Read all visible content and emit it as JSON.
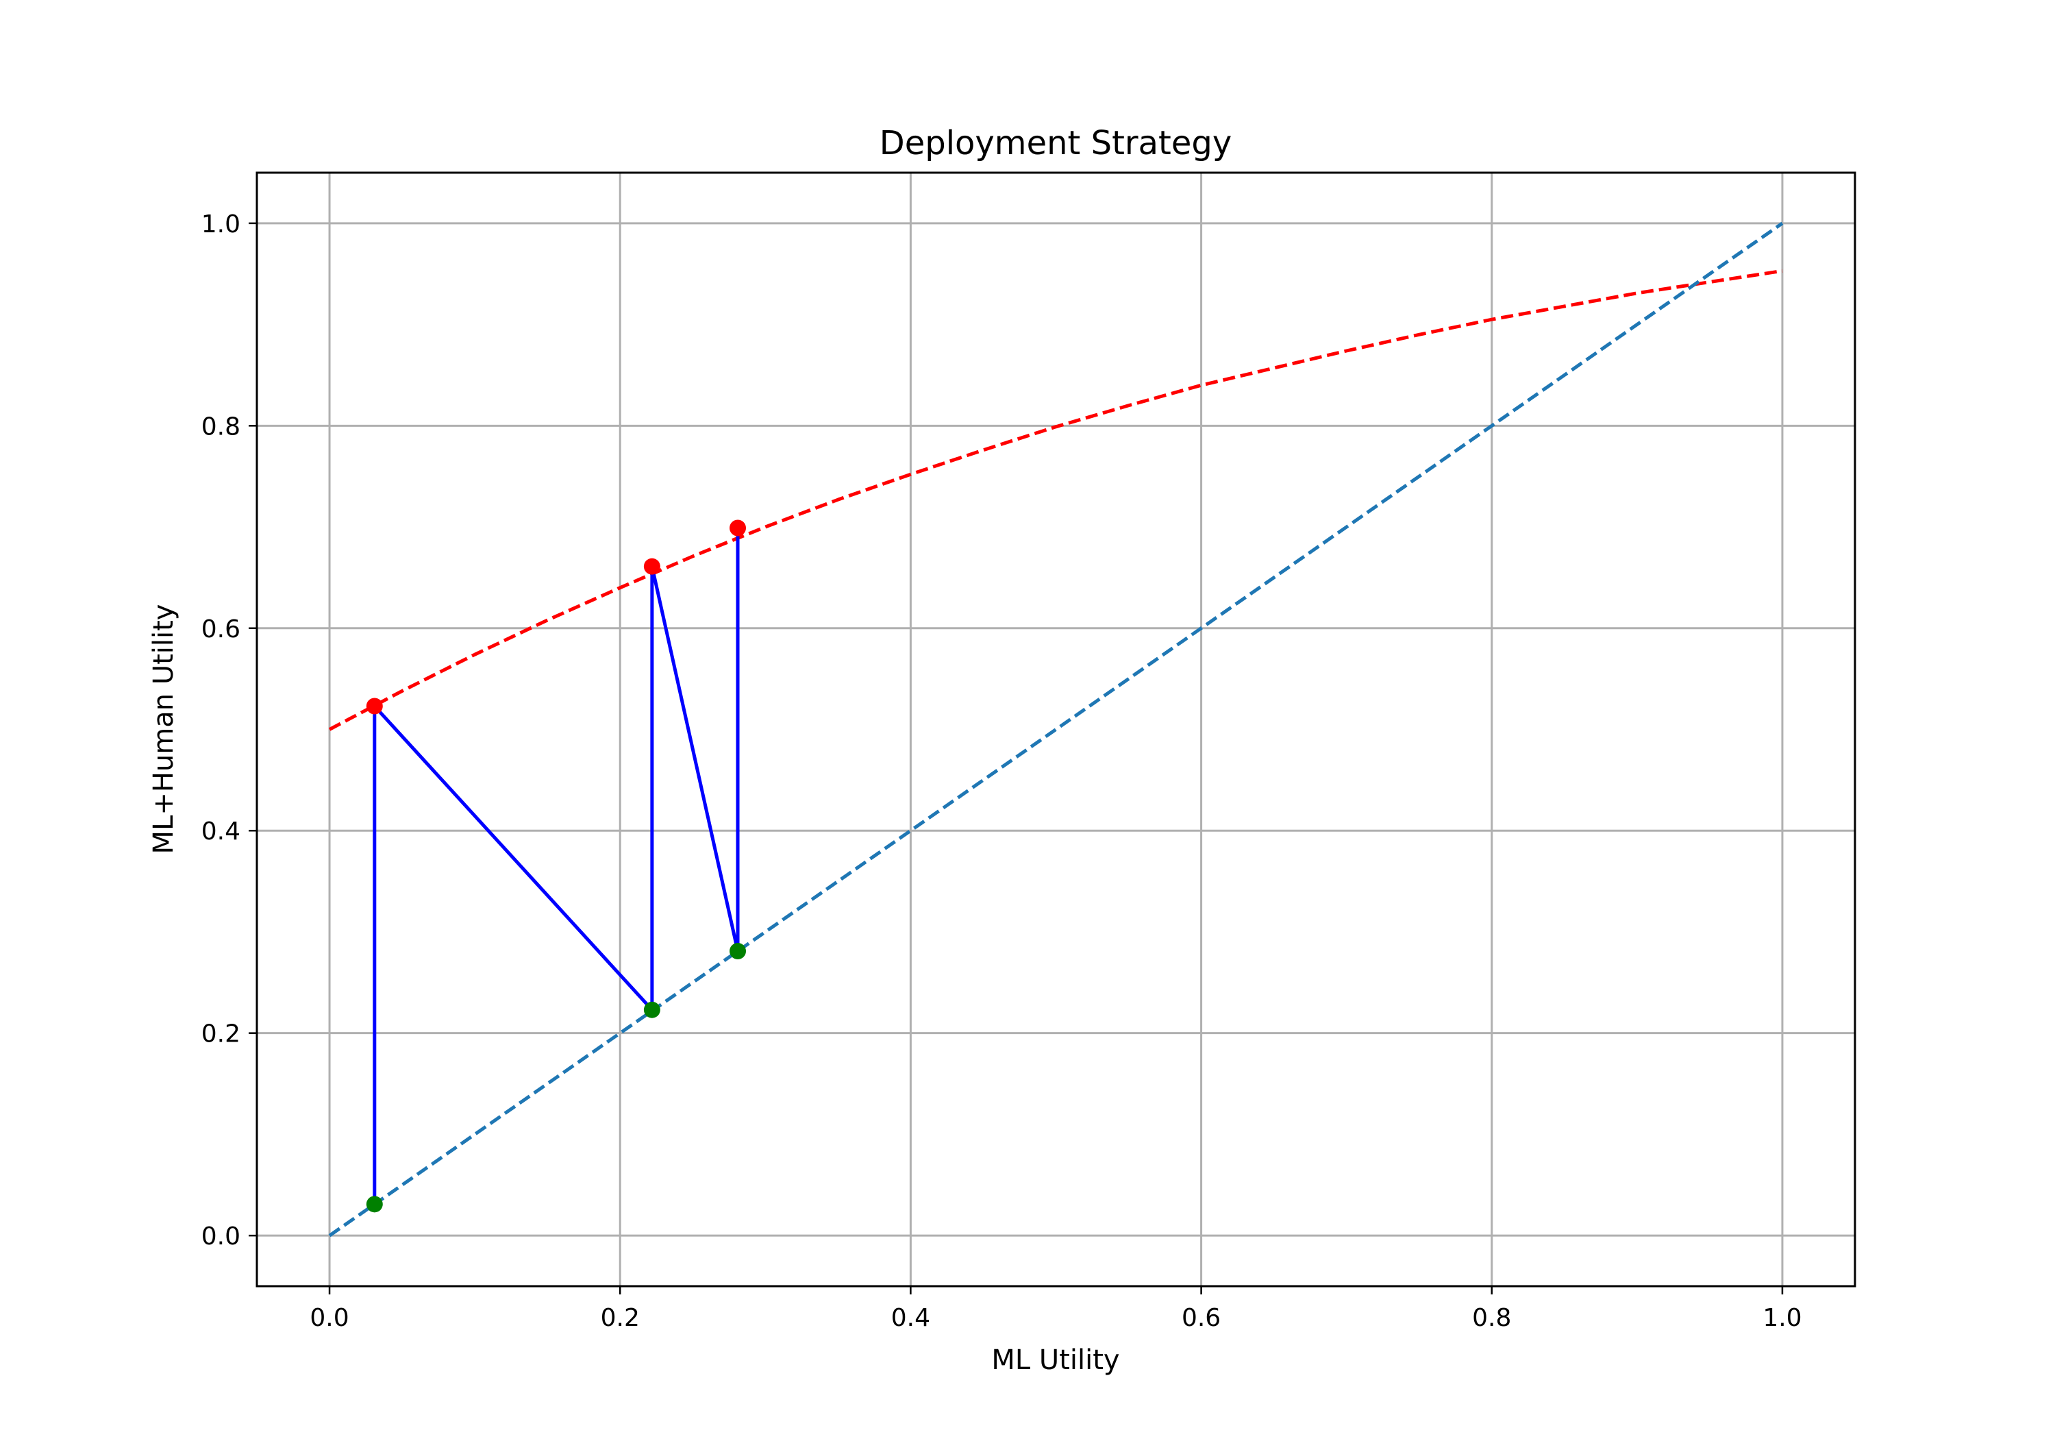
{
  "chart_data": {
    "type": "line",
    "title": "Deployment Strategy",
    "xlabel": "ML Utility",
    "ylabel": "ML+Human Utility",
    "xlim": [
      -0.05,
      1.05
    ],
    "ylim": [
      -0.05,
      1.05
    ],
    "xticks": [
      "0.0",
      "0.2",
      "0.4",
      "0.6",
      "0.8",
      "1.0"
    ],
    "yticks": [
      "0.0",
      "0.2",
      "0.4",
      "0.6",
      "0.8",
      "1.0"
    ],
    "grid": true,
    "series": [
      {
        "style": "dashed",
        "color": "#ff0000",
        "x": [
          0.0,
          0.05,
          0.1,
          0.15,
          0.2,
          0.25,
          0.3,
          0.35,
          0.4,
          0.45,
          0.5,
          0.55,
          0.6,
          0.65,
          0.7,
          0.75,
          0.8,
          0.85,
          0.9,
          0.95,
          1.0
        ],
        "y": [
          0.5,
          0.538,
          0.574,
          0.608,
          0.64,
          0.671,
          0.7,
          0.727,
          0.752,
          0.776,
          0.799,
          0.82,
          0.84,
          0.857,
          0.874,
          0.89,
          0.905,
          0.918,
          0.931,
          0.942,
          0.953
        ]
      },
      {
        "style": "dashed",
        "color": "#1f77b4",
        "x": [
          0.0,
          1.0
        ],
        "y": [
          0.0,
          1.0
        ]
      },
      {
        "style": "solid",
        "color": "#0000ff",
        "x": [
          0.031,
          0.031,
          0.222,
          0.222,
          0.222,
          0.281,
          0.281
        ],
        "y": [
          0.031,
          0.523,
          0.223,
          0.661,
          0.661,
          0.281,
          0.699
        ]
      }
    ],
    "points": [
      {
        "color": "#ff0000",
        "x": 0.031,
        "y": 0.523
      },
      {
        "color": "#ff0000",
        "x": 0.222,
        "y": 0.661
      },
      {
        "color": "#ff0000",
        "x": 0.281,
        "y": 0.699
      },
      {
        "color": "#008000",
        "x": 0.031,
        "y": 0.031
      },
      {
        "color": "#008000",
        "x": 0.222,
        "y": 0.223
      },
      {
        "color": "#008000",
        "x": 0.281,
        "y": 0.281
      }
    ]
  }
}
